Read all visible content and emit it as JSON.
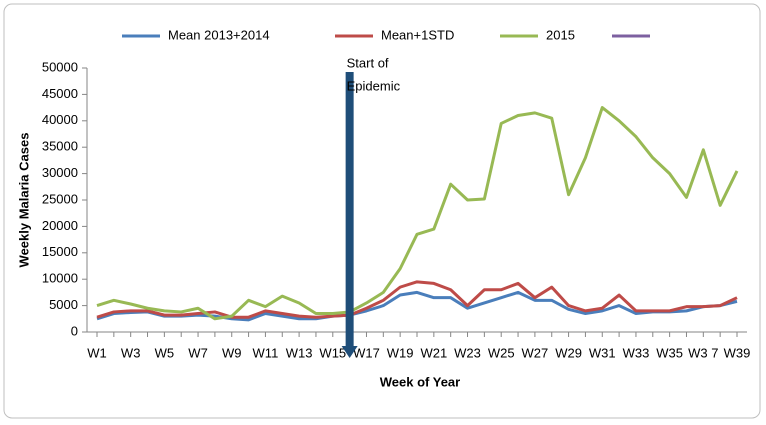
{
  "chart_data": {
    "type": "line",
    "x_label": "Week of Year",
    "y_label": "Weekly Malaria Cases",
    "annotation": [
      "Start of",
      "Epidemic"
    ],
    "categories": [
      "W1",
      null,
      "W3",
      null,
      "W5",
      null,
      "W7",
      null,
      "W9",
      null,
      "W11",
      null,
      "W13",
      null,
      "W15",
      null,
      "W17",
      null,
      "W19",
      null,
      "W21",
      null,
      "W23",
      null,
      "W25",
      null,
      "W27",
      null,
      "W29",
      null,
      "W31",
      null,
      "W33",
      null,
      "W35",
      null,
      "W3 7",
      null,
      "W39"
    ],
    "ylim": [
      0,
      50000
    ],
    "yticks": [
      0,
      5000,
      10000,
      15000,
      20000,
      25000,
      30000,
      35000,
      40000,
      45000,
      50000
    ],
    "legend": "top",
    "series": [
      {
        "name": "Mean 2013+2014",
        "color": "#4a7ebb",
        "values": [
          2500,
          3500,
          3700,
          3800,
          3000,
          3000,
          3200,
          3000,
          2500,
          2300,
          3500,
          3000,
          2500,
          2500,
          3000,
          3200,
          4000,
          5000,
          7000,
          7500,
          6500,
          6500,
          4500,
          5500,
          6500,
          7500,
          6000,
          6000,
          4300,
          3500,
          4000,
          5000,
          3500,
          3800,
          3800,
          4000,
          4800,
          5000,
          5800
        ]
      },
      {
        "name": "Mean+1STD",
        "color": "#be4b48",
        "values": [
          2800,
          3800,
          4000,
          4000,
          3200,
          3200,
          3500,
          3800,
          2800,
          2800,
          4000,
          3500,
          3000,
          2800,
          3000,
          3200,
          4500,
          6000,
          8500,
          9500,
          9200,
          8000,
          5000,
          8000,
          8000,
          9200,
          6500,
          8500,
          5000,
          4000,
          4500,
          7000,
          4000,
          4000,
          4000,
          4800,
          4800,
          5000,
          6500
        ]
      },
      {
        "name": "2015",
        "color": "#98b954",
        "values": [
          5000,
          6000,
          5300,
          4500,
          4000,
          3800,
          4500,
          2500,
          3000,
          6000,
          4800,
          6800,
          5500,
          3500,
          3500,
          3800,
          5500,
          7500,
          12000,
          18500,
          19500,
          28000,
          25000,
          25200,
          39500,
          41000,
          41500,
          40500,
          26000,
          33000,
          42500,
          40000,
          37000,
          33000,
          30000,
          25500,
          34500,
          24000,
          30500
        ]
      },
      {
        "color": "#7d60a0",
        "values": [
          null,
          null,
          null,
          null,
          null,
          null,
          null,
          null,
          null,
          null,
          null,
          null,
          null,
          null,
          null,
          null,
          null,
          null,
          null,
          null,
          null,
          null,
          null,
          null,
          null,
          null,
          null,
          null,
          null,
          null,
          null,
          null,
          null,
          null,
          null,
          null,
          null,
          null,
          null
        ]
      }
    ]
  }
}
